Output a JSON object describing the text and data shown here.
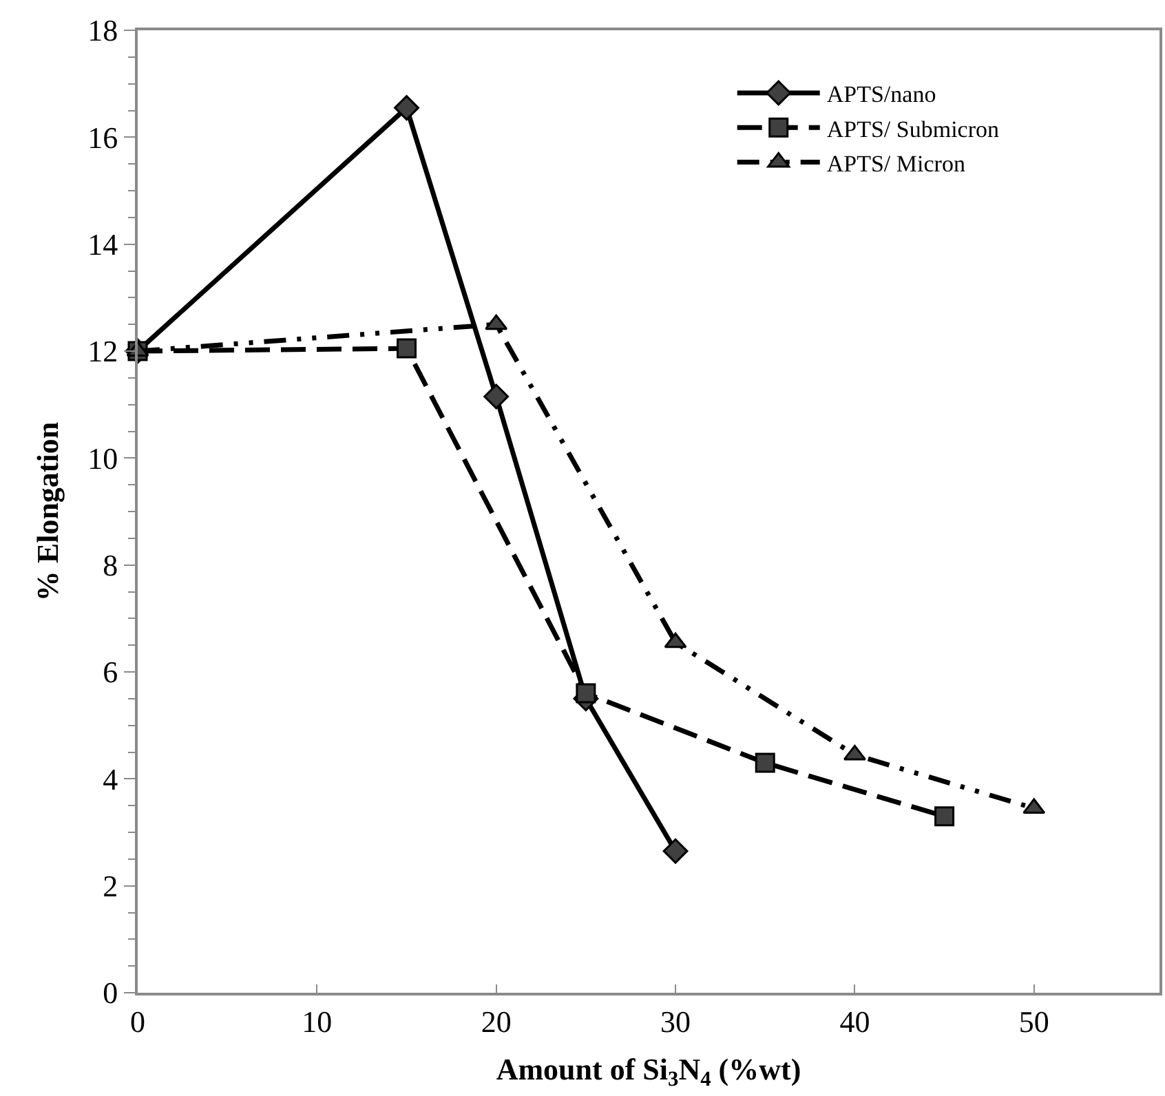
{
  "chart_data": {
    "type": "line",
    "xlabel": "Amount of Si$_{3}$N$_{4}$ (%wt)",
    "ylabel": "% Elongation",
    "xlim": [
      0,
      57
    ],
    "xticks": [
      0,
      10,
      20,
      30,
      40,
      50
    ],
    "ylim": [
      0,
      18
    ],
    "yticks": [
      0,
      2,
      4,
      6,
      8,
      10,
      12,
      14,
      16,
      18
    ],
    "legend": "top right",
    "series": [
      {
        "name": "APTS/nano",
        "color": "#000000",
        "marker": "diamond",
        "line_style": "solid",
        "x": [
          0,
          15,
          20,
          25,
          30
        ],
        "values": [
          12,
          16.55,
          11.15,
          5.5,
          2.65
        ]
      },
      {
        "name": "APTS/ Submicron",
        "color": "#000000",
        "marker": "square",
        "line_style": "dashed",
        "x": [
          0,
          15,
          25,
          35,
          45
        ],
        "values": [
          12,
          12.05,
          5.6,
          4.3,
          3.3
        ]
      },
      {
        "name": "APTS/ Micron",
        "color": "#000000",
        "marker": "triangle",
        "line_style": "dashdot",
        "x": [
          0,
          20,
          30,
          40,
          50
        ],
        "values": [
          12,
          12.5,
          6.55,
          4.45,
          3.45
        ]
      }
    ]
  }
}
